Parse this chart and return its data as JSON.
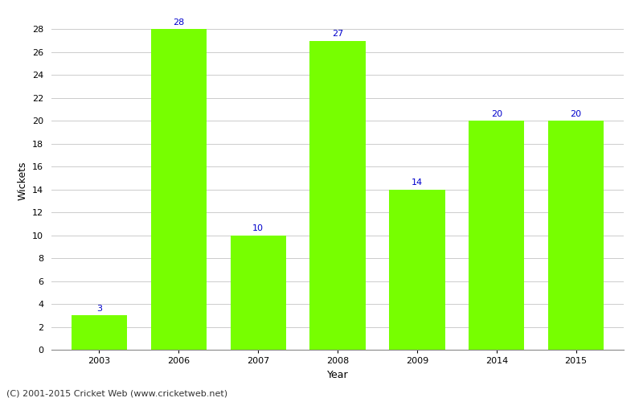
{
  "years": [
    2003,
    2006,
    2007,
    2008,
    2009,
    2014,
    2015
  ],
  "wickets": [
    3,
    28,
    10,
    27,
    14,
    20,
    20
  ],
  "bar_color": "#77ff00",
  "bar_edgecolor": "#77ff00",
  "label_color": "#0000cc",
  "label_fontsize": 8,
  "xlabel": "Year",
  "ylabel": "Wickets",
  "ylim": [
    0,
    29.5
  ],
  "yticks": [
    0,
    2,
    4,
    6,
    8,
    10,
    12,
    14,
    16,
    18,
    20,
    22,
    24,
    26,
    28
  ],
  "grid_color": "#cccccc",
  "background_color": "#ffffff",
  "footer_text": "(C) 2001-2015 Cricket Web (www.cricketweb.net)",
  "footer_fontsize": 8,
  "footer_color": "#333333",
  "xlabel_fontsize": 9,
  "ylabel_fontsize": 9,
  "tick_fontsize": 8,
  "bar_width": 0.7,
  "figsize": [
    8.0,
    5.0
  ],
  "dpi": 100
}
